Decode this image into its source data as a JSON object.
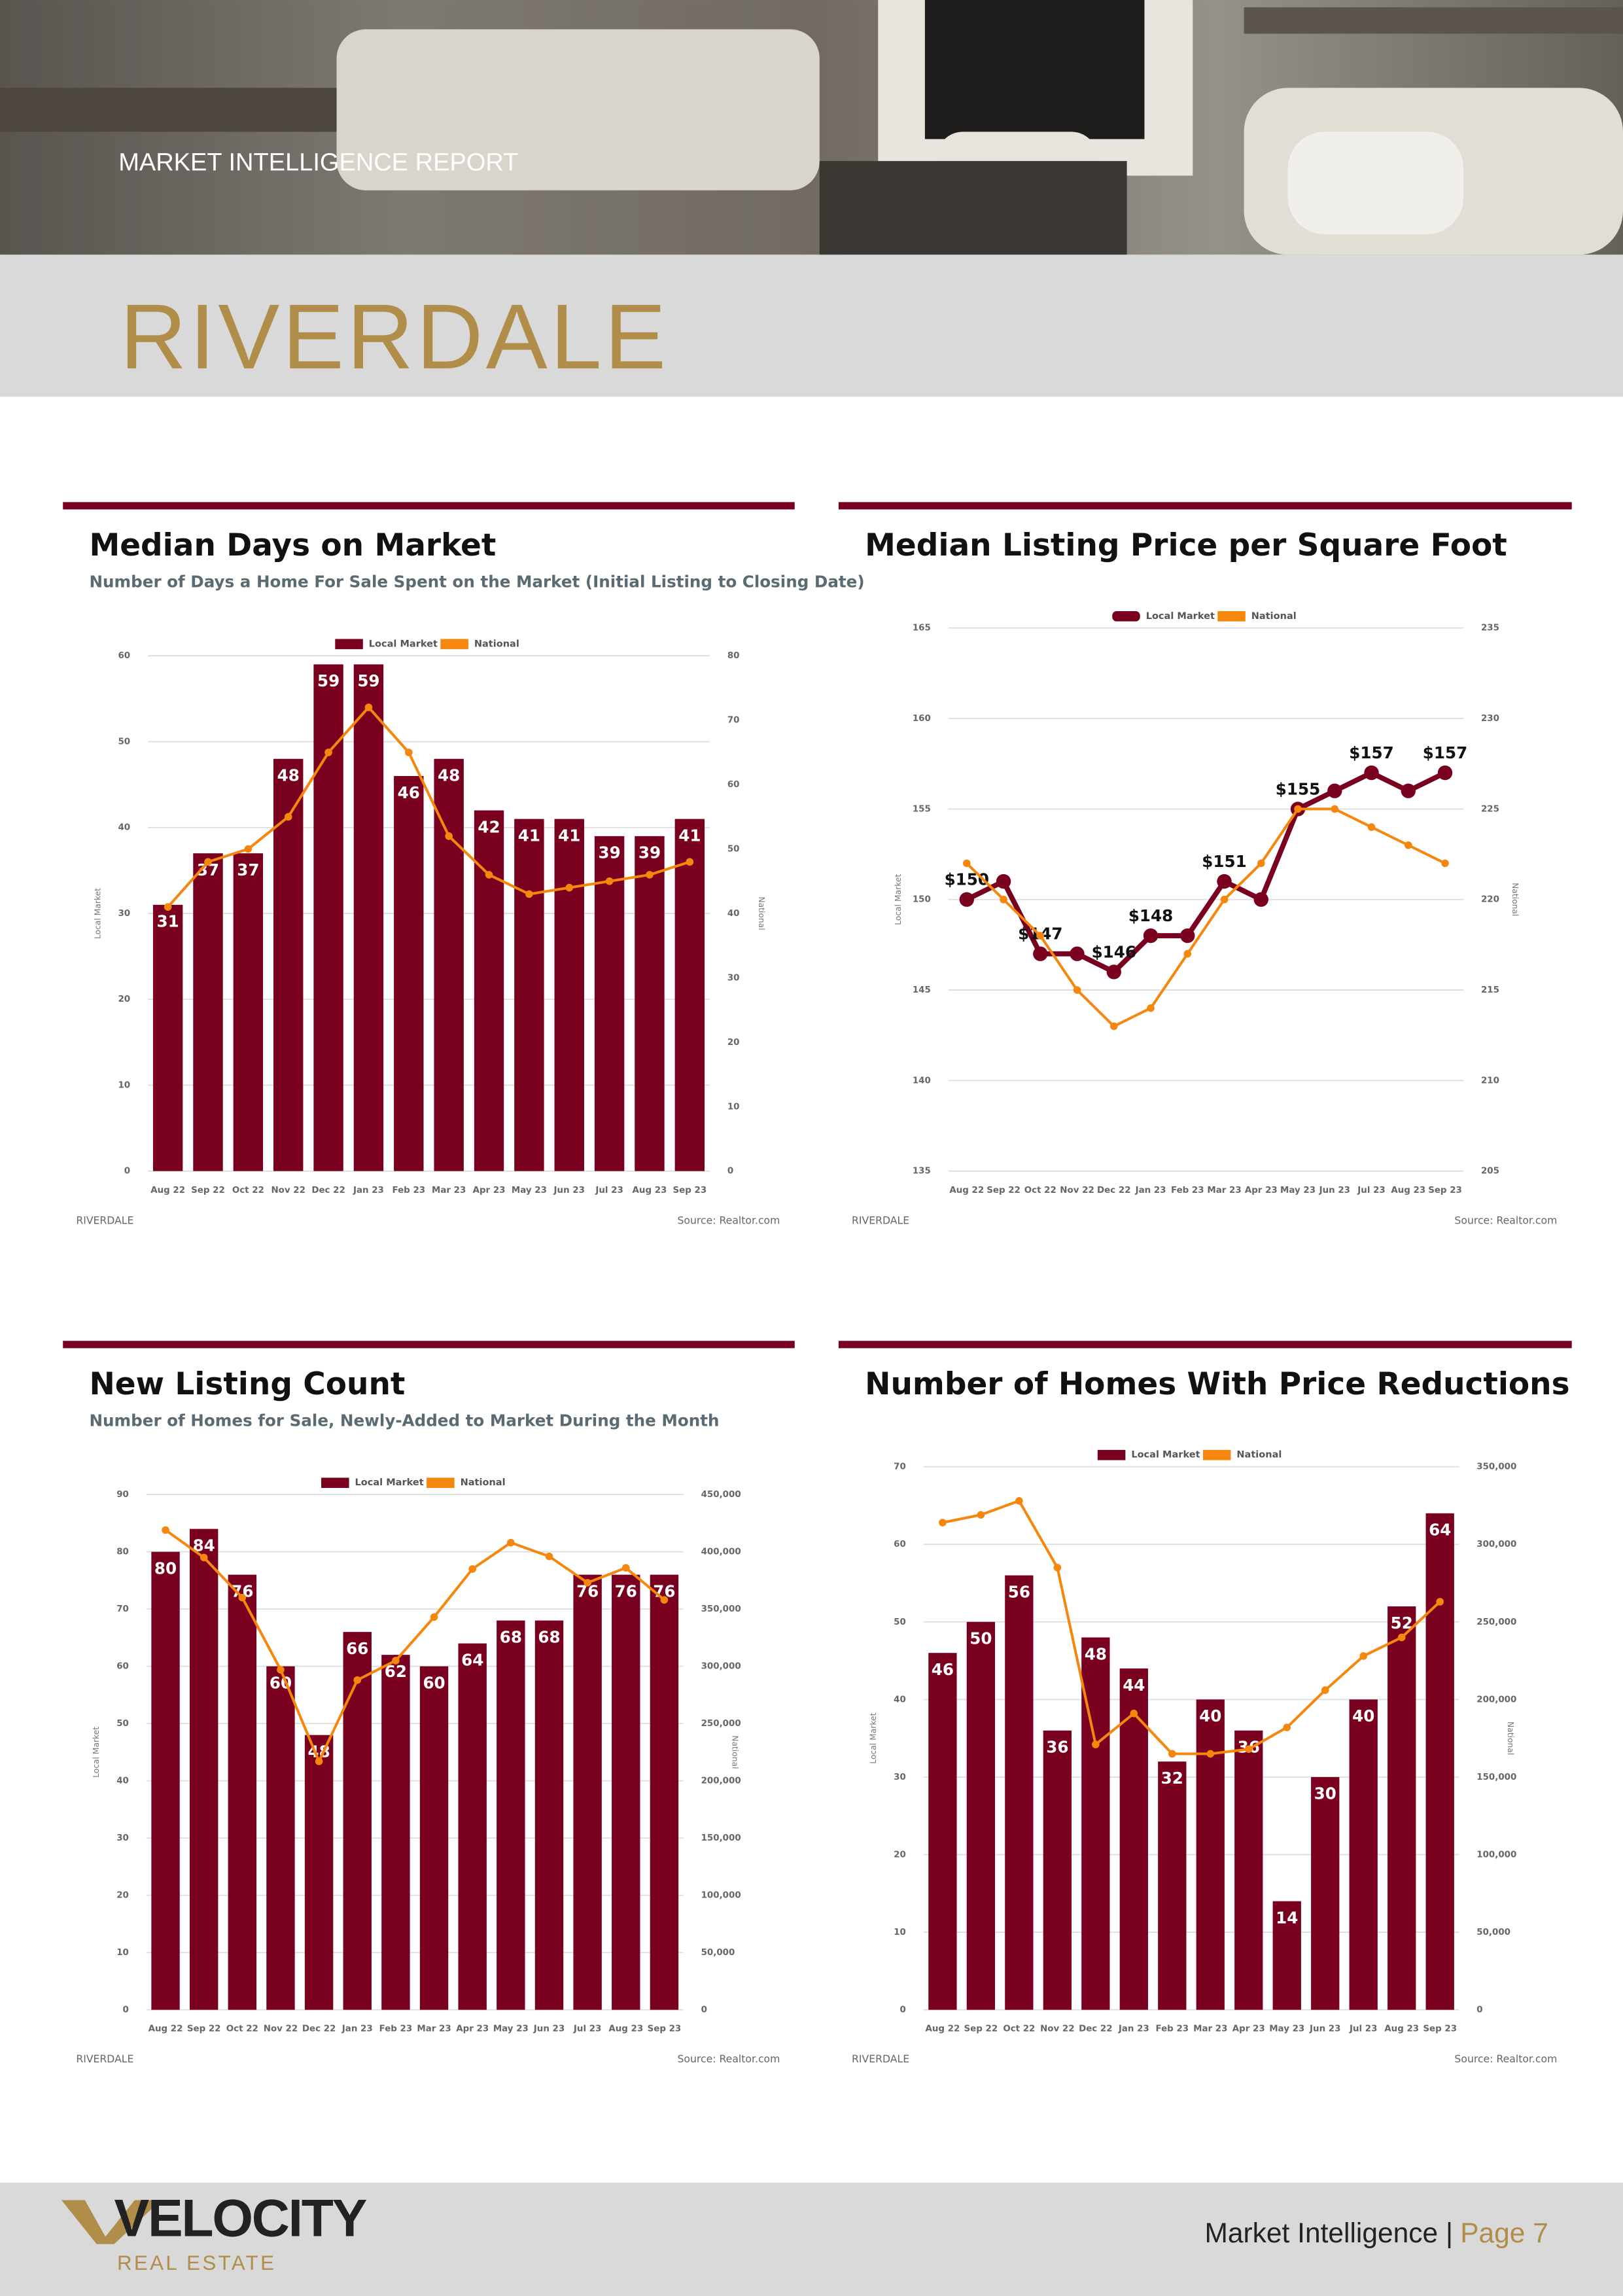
{
  "header": {
    "kicker": "MARKET INTELLIGENCE REPORT",
    "title": "RIVERDALE"
  },
  "chart_data": [
    {
      "type": "bar",
      "title": "Median Days on Market",
      "subtitle": "Number of Days a Home For Sale Spent on the Market (Initial Listing to Closing Date)",
      "categories": [
        "Aug 22",
        "Sep 22",
        "Oct 22",
        "Nov 22",
        "Dec 22",
        "Jan 23",
        "Feb 23",
        "Mar 23",
        "Apr 23",
        "May 23",
        "Jun 23",
        "Jul 23",
        "Aug 23",
        "Sep 23"
      ],
      "series": [
        {
          "name": "Local Market",
          "color": "#7a0020",
          "values": [
            31,
            37,
            37,
            48,
            59,
            59,
            46,
            48,
            42,
            41,
            41,
            39,
            39,
            41
          ]
        },
        {
          "name": "National",
          "color": "#f5870f",
          "type": "line",
          "axis": "y2",
          "values": [
            41,
            48,
            50,
            55,
            65,
            72,
            65,
            52,
            46,
            43,
            44,
            45,
            46,
            48
          ]
        }
      ],
      "ylim": [
        0,
        60
      ],
      "yticks": [
        0,
        10,
        20,
        30,
        40,
        50,
        60
      ],
      "y2lim": [
        0,
        80
      ],
      "y2ticks": [
        0,
        10,
        20,
        30,
        40,
        50,
        60,
        70,
        80
      ],
      "ylabel": "Local Market",
      "y2label": "National",
      "grid": true,
      "legend": "top",
      "caption": "RIVERDALE",
      "source": "Source: Realtor.com"
    },
    {
      "type": "line",
      "title": "Median Listing Price per Square Foot",
      "categories": [
        "Aug 22",
        "Sep 22",
        "Oct 22",
        "Nov 22",
        "Dec 22",
        "Jan 23",
        "Feb 23",
        "Mar 23",
        "Apr 23",
        "May 23",
        "Jun 23",
        "Jul 23",
        "Aug 23",
        "Sep 23"
      ],
      "series": [
        {
          "name": "Local Market",
          "color": "#7a0020",
          "values": [
            150,
            151,
            147,
            147,
            146,
            148,
            148,
            151,
            150,
            155,
            156,
            157,
            156,
            157
          ],
          "value_labels": [
            "$150",
            null,
            "$147",
            null,
            "$146",
            "$148",
            null,
            "$151",
            null,
            "$155",
            null,
            "$157",
            null,
            "$157"
          ]
        },
        {
          "name": "National",
          "color": "#f5870f",
          "axis": "y2",
          "values": [
            222,
            220,
            218,
            215,
            213,
            214,
            217,
            220,
            222,
            225,
            225,
            224,
            223,
            222
          ]
        }
      ],
      "ylim": [
        135,
        165
      ],
      "yticks": [
        135,
        140,
        145,
        150,
        155,
        160,
        165
      ],
      "y2lim": [
        205,
        235
      ],
      "y2ticks": [
        205,
        210,
        215,
        220,
        225,
        230,
        235
      ],
      "ylabel": "Local Market",
      "y2label": "National",
      "grid": true,
      "legend": "top",
      "caption": "RIVERDALE",
      "source": "Source: Realtor.com"
    },
    {
      "type": "bar",
      "title": "New Listing Count",
      "subtitle": "Number of Homes for Sale, Newly-Added to Market During the Month",
      "categories": [
        "Aug 22",
        "Sep 22",
        "Oct 22",
        "Nov 22",
        "Dec 22",
        "Jan 23",
        "Feb 23",
        "Mar 23",
        "Apr 23",
        "May 23",
        "Jun 23",
        "Jul 23",
        "Aug 23",
        "Sep 23"
      ],
      "series": [
        {
          "name": "Local Market",
          "color": "#7a0020",
          "values": [
            80,
            84,
            76,
            60,
            48,
            66,
            62,
            60,
            64,
            68,
            68,
            76,
            76,
            76
          ]
        },
        {
          "name": "National",
          "color": "#f5870f",
          "type": "line",
          "axis": "y2",
          "values": [
            419000,
            395000,
            360000,
            297000,
            217000,
            288000,
            305000,
            343000,
            385000,
            408000,
            396000,
            373000,
            386000,
            358000
          ]
        }
      ],
      "ylim": [
        0,
        90
      ],
      "yticks": [
        0,
        10,
        20,
        30,
        40,
        50,
        60,
        70,
        80,
        90
      ],
      "y2lim": [
        0,
        450000
      ],
      "y2ticks": [
        0,
        {
          "value": 50000,
          "label": "50,000"
        },
        {
          "value": 100000,
          "label": "100,000"
        },
        {
          "value": 150000,
          "label": "150,000"
        },
        {
          "value": 200000,
          "label": "200,000"
        },
        {
          "value": 250000,
          "label": "250,000"
        },
        {
          "value": 300000,
          "label": "300,000"
        },
        {
          "value": 350000,
          "label": "350,000"
        },
        {
          "value": 400000,
          "label": "400,000"
        },
        {
          "value": 450000,
          "label": "450,000"
        }
      ],
      "ylabel": "Local Market",
      "y2label": "National",
      "grid": true,
      "legend": "top",
      "caption": "RIVERDALE",
      "source": "Source: Realtor.com"
    },
    {
      "type": "bar",
      "title": "Number of Homes With Price Reductions",
      "categories": [
        "Aug 22",
        "Sep 22",
        "Oct 22",
        "Nov 22",
        "Dec 22",
        "Jan 23",
        "Feb 23",
        "Mar 23",
        "Apr 23",
        "May 23",
        "Jun 23",
        "Jul 23",
        "Aug 23",
        "Sep 23"
      ],
      "series": [
        {
          "name": "Local Market",
          "color": "#7a0020",
          "values": [
            46,
            50,
            56,
            36,
            48,
            44,
            32,
            40,
            36,
            14,
            30,
            40,
            52,
            64
          ]
        },
        {
          "name": "National",
          "color": "#f5870f",
          "type": "line",
          "axis": "y2",
          "values": [
            314000,
            319000,
            328000,
            285000,
            171000,
            191000,
            165000,
            165000,
            168000,
            182000,
            206000,
            228000,
            240000,
            263000
          ]
        }
      ],
      "ylim": [
        0,
        70
      ],
      "yticks": [
        0,
        10,
        20,
        30,
        40,
        50,
        60,
        70
      ],
      "y2lim": [
        0,
        350000
      ],
      "y2ticks": [
        0,
        {
          "value": 50000,
          "label": "50,000"
        },
        {
          "value": 100000,
          "label": "100,000"
        },
        {
          "value": 150000,
          "label": "150,000"
        },
        {
          "value": 200000,
          "label": "200,000"
        },
        {
          "value": 250000,
          "label": "250,000"
        },
        {
          "value": 300000,
          "label": "300,000"
        },
        {
          "value": 350000,
          "label": "350,000"
        }
      ],
      "ylabel": "Local Market",
      "y2label": "National",
      "grid": true,
      "legend": "top",
      "caption": "RIVERDALE",
      "source": "Source: Realtor.com"
    }
  ],
  "footer": {
    "brand": "VELOCITY",
    "brand_sub": "REAL ESTATE",
    "label": "Market Intelligence |",
    "page": "Page 7"
  }
}
